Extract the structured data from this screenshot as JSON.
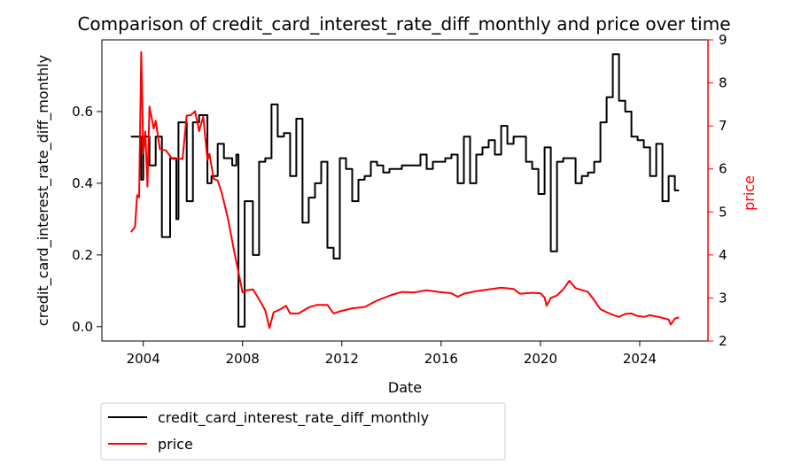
{
  "chart_data": {
    "type": "line",
    "title": "Comparison of credit_card_interest_rate_diff_monthly and price over time",
    "xlabel": "Date",
    "ylabel_left": "credit_card_interest_rate_diff_monthly",
    "ylabel_right": "price",
    "x_ticks": [
      "2004",
      "2008",
      "2012",
      "2016",
      "2020",
      "2024"
    ],
    "y_left_ticks": [
      "0.0",
      "0.2",
      "0.4",
      "0.6"
    ],
    "y_right_ticks": [
      "2",
      "3",
      "4",
      "5",
      "6",
      "7",
      "8",
      "9"
    ],
    "xlim": [
      "2002-05",
      "2026-10"
    ],
    "ylim_left": [
      -0.04,
      0.8
    ],
    "ylim_right": [
      2.0,
      9.0
    ],
    "legend_position": "below-left",
    "grid": false,
    "colors": {
      "left_axis": "#000000",
      "right_axis": "#ff0000"
    },
    "series": [
      {
        "name": "credit_card_interest_rate_diff_monthly",
        "axis": "left",
        "color": "#000000",
        "step": true,
        "points": [
          [
            "2003-07",
            0.53
          ],
          [
            "2003-12",
            0.41
          ],
          [
            "2004-01",
            0.53
          ],
          [
            "2004-04",
            0.45
          ],
          [
            "2004-07",
            0.53
          ],
          [
            "2004-10",
            0.25
          ],
          [
            "2005-02",
            0.47
          ],
          [
            "2005-05",
            0.3
          ],
          [
            "2005-06",
            0.57
          ],
          [
            "2005-10",
            0.35
          ],
          [
            "2006-01",
            0.57
          ],
          [
            "2006-04",
            0.59
          ],
          [
            "2006-08",
            0.4
          ],
          [
            "2006-10",
            0.42
          ],
          [
            "2007-01",
            0.51
          ],
          [
            "2007-04",
            0.47
          ],
          [
            "2007-08",
            0.45
          ],
          [
            "2007-10",
            0.48
          ],
          [
            "2007-11",
            0.0
          ],
          [
            "2008-02",
            0.35
          ],
          [
            "2008-06",
            0.2
          ],
          [
            "2008-09",
            0.46
          ],
          [
            "2008-12",
            0.47
          ],
          [
            "2009-03",
            0.62
          ],
          [
            "2009-06",
            0.53
          ],
          [
            "2009-09",
            0.54
          ],
          [
            "2009-12",
            0.42
          ],
          [
            "2010-03",
            0.58
          ],
          [
            "2010-06",
            0.29
          ],
          [
            "2010-09",
            0.36
          ],
          [
            "2010-12",
            0.4
          ],
          [
            "2011-03",
            0.46
          ],
          [
            "2011-06",
            0.22
          ],
          [
            "2011-09",
            0.19
          ],
          [
            "2011-12",
            0.47
          ],
          [
            "2012-03",
            0.44
          ],
          [
            "2012-06",
            0.35
          ],
          [
            "2012-09",
            0.41
          ],
          [
            "2012-12",
            0.42
          ],
          [
            "2013-03",
            0.46
          ],
          [
            "2013-06",
            0.45
          ],
          [
            "2013-09",
            0.43
          ],
          [
            "2013-12",
            0.44
          ],
          [
            "2014-06",
            0.45
          ],
          [
            "2014-12",
            0.45
          ],
          [
            "2015-03",
            0.48
          ],
          [
            "2015-06",
            0.44
          ],
          [
            "2015-09",
            0.46
          ],
          [
            "2015-12",
            0.46
          ],
          [
            "2016-03",
            0.47
          ],
          [
            "2016-06",
            0.48
          ],
          [
            "2016-09",
            0.4
          ],
          [
            "2016-12",
            0.53
          ],
          [
            "2017-03",
            0.4
          ],
          [
            "2017-06",
            0.48
          ],
          [
            "2017-09",
            0.5
          ],
          [
            "2017-12",
            0.52
          ],
          [
            "2018-03",
            0.48
          ],
          [
            "2018-06",
            0.56
          ],
          [
            "2018-09",
            0.51
          ],
          [
            "2018-12",
            0.53
          ],
          [
            "2019-06",
            0.46
          ],
          [
            "2019-09",
            0.44
          ],
          [
            "2019-12",
            0.37
          ],
          [
            "2020-03",
            0.5
          ],
          [
            "2020-06",
            0.21
          ],
          [
            "2020-09",
            0.46
          ],
          [
            "2020-12",
            0.47
          ],
          [
            "2021-03",
            0.47
          ],
          [
            "2021-06",
            0.4
          ],
          [
            "2021-09",
            0.42
          ],
          [
            "2021-12",
            0.43
          ],
          [
            "2022-03",
            0.46
          ],
          [
            "2022-06",
            0.57
          ],
          [
            "2022-09",
            0.64
          ],
          [
            "2022-12",
            0.76
          ],
          [
            "2023-03",
            0.63
          ],
          [
            "2023-06",
            0.6
          ],
          [
            "2023-09",
            0.53
          ],
          [
            "2023-12",
            0.52
          ],
          [
            "2024-03",
            0.5
          ],
          [
            "2024-06",
            0.42
          ],
          [
            "2024-09",
            0.51
          ],
          [
            "2024-12",
            0.35
          ],
          [
            "2025-03",
            0.42
          ],
          [
            "2025-06",
            0.38
          ],
          [
            "2025-08",
            0.38
          ]
        ]
      },
      {
        "name": "price",
        "axis": "right",
        "color": "#ff0000",
        "step": false,
        "points": [
          [
            "2003-07",
            4.53
          ],
          [
            "2003-09",
            4.65
          ],
          [
            "2003-10",
            5.39
          ],
          [
            "2003-11",
            5.34
          ],
          [
            "2003-12",
            8.72
          ],
          [
            "2004-01",
            6.36
          ],
          [
            "2004-02",
            6.87
          ],
          [
            "2004-03",
            5.59
          ],
          [
            "2004-04",
            7.45
          ],
          [
            "2004-06",
            6.94
          ],
          [
            "2004-07",
            7.12
          ],
          [
            "2004-09",
            6.46
          ],
          [
            "2004-12",
            6.43
          ],
          [
            "2005-03",
            6.23
          ],
          [
            "2005-06",
            6.24
          ],
          [
            "2005-08",
            6.23
          ],
          [
            "2005-10",
            7.24
          ],
          [
            "2005-12",
            7.25
          ],
          [
            "2006-02",
            7.34
          ],
          [
            "2006-04",
            6.88
          ],
          [
            "2006-06",
            7.22
          ],
          [
            "2006-08",
            6.21
          ],
          [
            "2006-09",
            6.35
          ],
          [
            "2006-11",
            5.77
          ],
          [
            "2007-01",
            5.73
          ],
          [
            "2007-03",
            5.43
          ],
          [
            "2007-06",
            4.83
          ],
          [
            "2007-09",
            4.07
          ],
          [
            "2007-11",
            3.6
          ],
          [
            "2008-01",
            3.13
          ],
          [
            "2008-03",
            3.18
          ],
          [
            "2008-06",
            3.2
          ],
          [
            "2008-09",
            2.97
          ],
          [
            "2008-12",
            2.71
          ],
          [
            "2009-02",
            2.3
          ],
          [
            "2009-04",
            2.67
          ],
          [
            "2009-07",
            2.73
          ],
          [
            "2009-10",
            2.82
          ],
          [
            "2009-12",
            2.64
          ],
          [
            "2010-04",
            2.64
          ],
          [
            "2010-09",
            2.78
          ],
          [
            "2011-01",
            2.84
          ],
          [
            "2011-06",
            2.84
          ],
          [
            "2011-09",
            2.64
          ],
          [
            "2011-12",
            2.69
          ],
          [
            "2012-06",
            2.76
          ],
          [
            "2012-12",
            2.79
          ],
          [
            "2013-06",
            2.94
          ],
          [
            "2014-01",
            3.07
          ],
          [
            "2014-06",
            3.14
          ],
          [
            "2014-12",
            3.13
          ],
          [
            "2015-06",
            3.18
          ],
          [
            "2015-12",
            3.14
          ],
          [
            "2016-06",
            3.11
          ],
          [
            "2016-09",
            3.03
          ],
          [
            "2016-12",
            3.1
          ],
          [
            "2017-06",
            3.16
          ],
          [
            "2017-12",
            3.2
          ],
          [
            "2018-06",
            3.24
          ],
          [
            "2018-12",
            3.21
          ],
          [
            "2019-03",
            3.1
          ],
          [
            "2019-09",
            3.12
          ],
          [
            "2020-01",
            3.11
          ],
          [
            "2020-03",
            3.01
          ],
          [
            "2020-04",
            2.82
          ],
          [
            "2020-06",
            3.0
          ],
          [
            "2020-09",
            3.06
          ],
          [
            "2020-12",
            3.2
          ],
          [
            "2021-03",
            3.4
          ],
          [
            "2021-06",
            3.23
          ],
          [
            "2021-12",
            3.14
          ],
          [
            "2022-03",
            2.95
          ],
          [
            "2022-06",
            2.74
          ],
          [
            "2022-09",
            2.67
          ],
          [
            "2022-12",
            2.61
          ],
          [
            "2023-03",
            2.56
          ],
          [
            "2023-06",
            2.63
          ],
          [
            "2023-09",
            2.64
          ],
          [
            "2023-12",
            2.58
          ],
          [
            "2024-03",
            2.56
          ],
          [
            "2024-06",
            2.6
          ],
          [
            "2024-12",
            2.54
          ],
          [
            "2025-03",
            2.5
          ],
          [
            "2025-04",
            2.38
          ],
          [
            "2025-06",
            2.52
          ],
          [
            "2025-08",
            2.55
          ]
        ]
      }
    ]
  }
}
